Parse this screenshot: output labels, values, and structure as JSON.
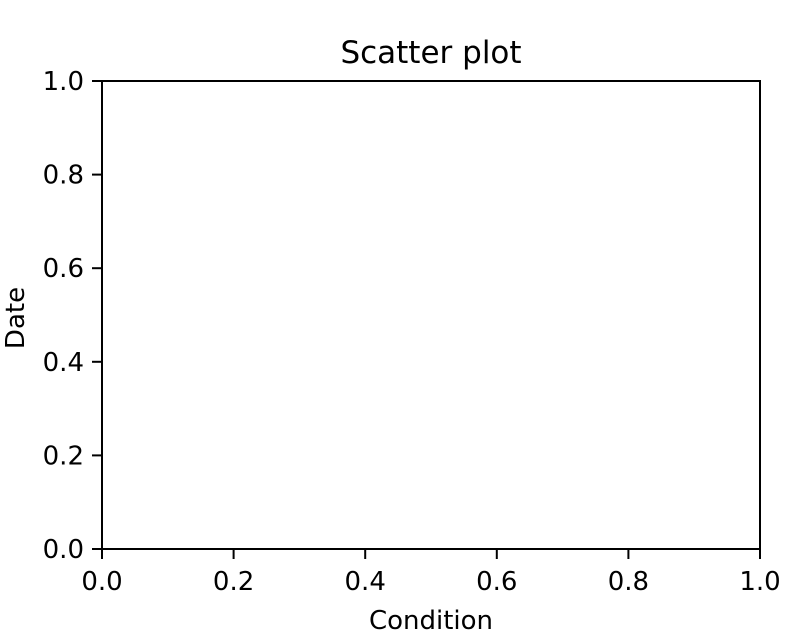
{
  "chart_data": {
    "type": "scatter",
    "title": "Scatter plot",
    "xlabel": "Condition",
    "ylabel": "Date",
    "xlim": [
      0,
      1
    ],
    "ylim": [
      0,
      1
    ],
    "xticks": [
      0.0,
      0.2,
      0.4,
      0.6,
      0.8,
      1.0
    ],
    "yticks": [
      0.0,
      0.2,
      0.4,
      0.6,
      0.8,
      1.0
    ],
    "xtick_labels": [
      "0.0",
      "0.2",
      "0.4",
      "0.6",
      "0.8",
      "1.0"
    ],
    "ytick_labels": [
      "0.0",
      "0.2",
      "0.4",
      "0.6",
      "0.8",
      "1.0"
    ],
    "grid": false,
    "legend": "none",
    "series": [
      {
        "x": [],
        "y": []
      }
    ],
    "colors": {
      "axis": "#000000",
      "background": "#ffffff"
    }
  }
}
